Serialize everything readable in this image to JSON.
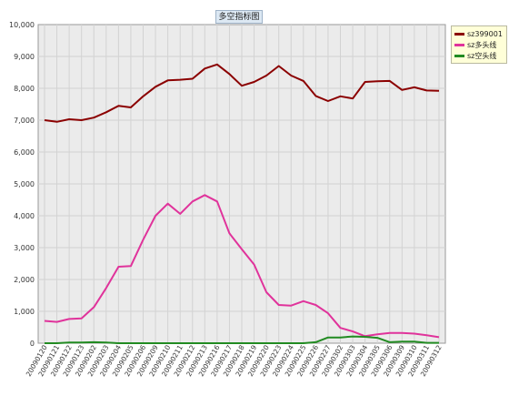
{
  "chart_data": {
    "type": "line",
    "title": "多空指标图",
    "categories": [
      "20090120",
      "20090121",
      "20090122",
      "20090123",
      "20090202",
      "20090203",
      "20090204",
      "20090205",
      "20090206",
      "20090209",
      "20090210",
      "20090211",
      "20090212",
      "20090213",
      "20090216",
      "20090217",
      "20090218",
      "20090219",
      "20090220",
      "20090223",
      "20090224",
      "20090225",
      "20090226",
      "20090227",
      "20090302",
      "20090303",
      "20090304",
      "20090305",
      "20090306",
      "20090309",
      "20090310",
      "20090311",
      "20090312"
    ],
    "ylim": [
      0,
      10000
    ],
    "yticks": [
      "0",
      "1,000",
      "2,000",
      "3,000",
      "4,000",
      "5,000",
      "6,000",
      "7,000",
      "8,000",
      "9,000",
      "10,000"
    ],
    "grid": true,
    "legend_position": "right-top",
    "series": [
      {
        "name": "sz399001",
        "color": "#8b0000",
        "values": [
          7000,
          6950,
          7030,
          7000,
          7080,
          7250,
          7450,
          7400,
          7750,
          8050,
          8250,
          8270,
          8300,
          8620,
          8750,
          8450,
          8080,
          8200,
          8400,
          8700,
          8400,
          8230,
          7760,
          7600,
          7750,
          7680,
          8200,
          8220,
          8230,
          7950,
          8030,
          7930,
          7920
        ]
      },
      {
        "name": "sz多头线",
        "color": "#e0339b",
        "values": [
          700,
          670,
          760,
          780,
          1130,
          1730,
          2400,
          2420,
          3250,
          4000,
          4380,
          4060,
          4450,
          4650,
          4450,
          3450,
          2950,
          2470,
          1600,
          1200,
          1180,
          1320,
          1200,
          940,
          480,
          370,
          220,
          280,
          320,
          320,
          300,
          250,
          190
        ]
      },
      {
        "name": "sz空头线",
        "color": "#228b22",
        "values": [
          0,
          0,
          20,
          20,
          30,
          20,
          0,
          0,
          0,
          0,
          0,
          0,
          0,
          0,
          0,
          0,
          0,
          0,
          0,
          0,
          0,
          0,
          30,
          180,
          180,
          210,
          200,
          170,
          30,
          50,
          50,
          10,
          10
        ]
      }
    ]
  }
}
